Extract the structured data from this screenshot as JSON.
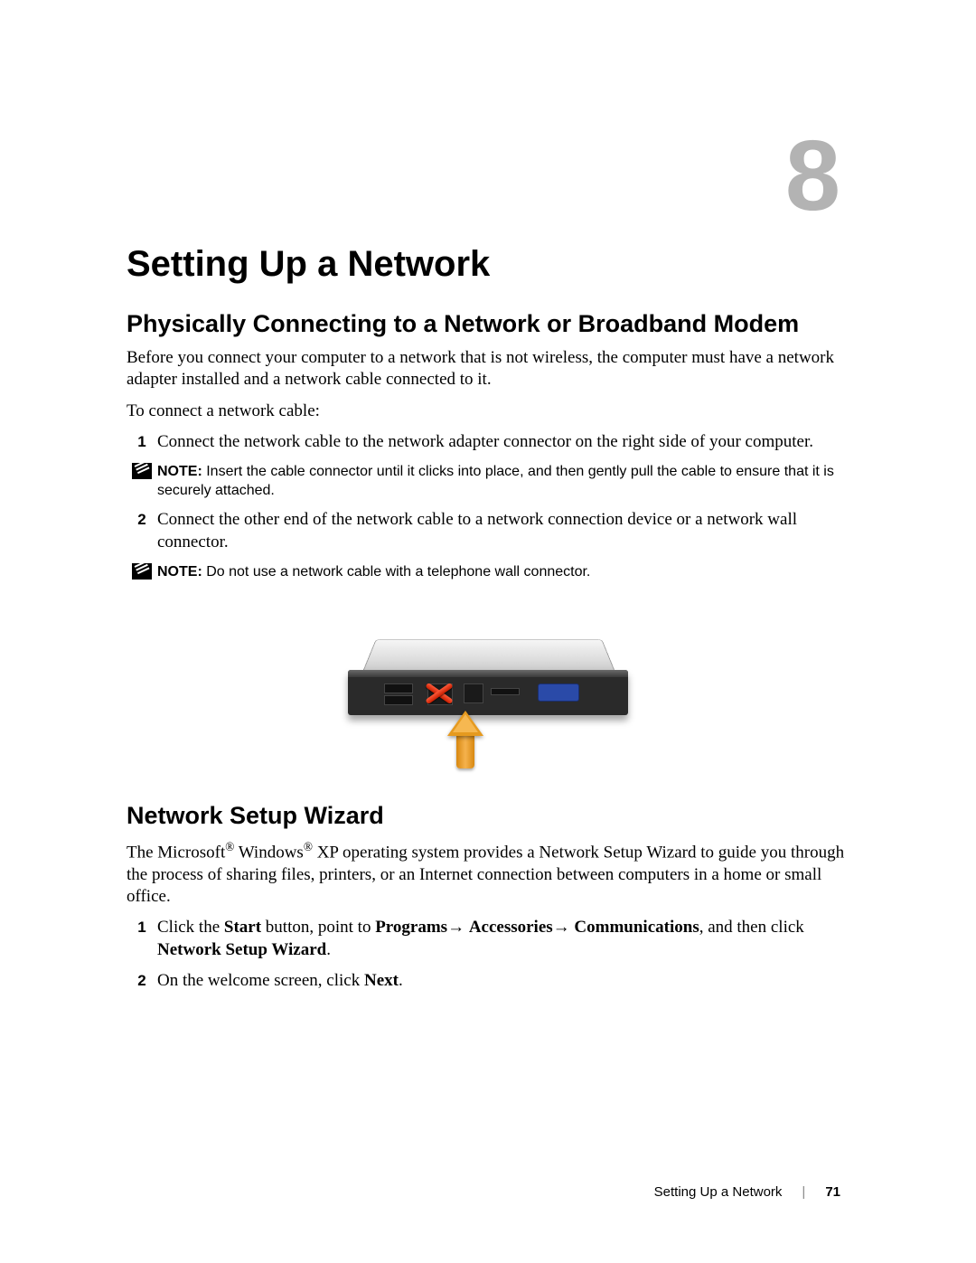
{
  "chapter_number": "8",
  "title": "Setting Up a Network",
  "section1": {
    "heading": "Physically Connecting to a Network or Broadband Modem",
    "intro": "Before you connect your computer to a network that is not wireless, the computer must have a network adapter installed and a network cable connected to it.",
    "lead": "To connect a network cable:",
    "steps": {
      "s1_num": "1",
      "s1_text": "Connect the network cable to the network adapter connector on the right side of your computer.",
      "s2_num": "2",
      "s2_text": "Connect the other end of the network cable to a network connection device or a network wall connector."
    },
    "notes": {
      "n1_label": "NOTE:",
      "n1_text": " Insert the cable connector until it clicks into place, and then gently pull the cable to ensure that it is securely attached.",
      "n2_label": "NOTE:",
      "n2_text": " Do not use a network cable with a telephone wall connector."
    }
  },
  "section2": {
    "heading": "Network Setup Wizard",
    "intro_pre": "The Microsoft",
    "intro_mid": " Windows",
    "intro_post": " XP operating system provides a Network Setup Wizard to guide you through the process of sharing files, printers, or an Internet connection between computers in a home or small office.",
    "steps": {
      "s1_num": "1",
      "s1_a": "Click the ",
      "s1_b": "Start",
      "s1_c": " button, point to ",
      "s1_d": "Programs",
      "s1_e": "→ ",
      "s1_f": "Accessories",
      "s1_g": "→ ",
      "s1_h": "Communications",
      "s1_i": ", and then click ",
      "s1_j": "Network Setup Wizard",
      "s1_k": ".",
      "s2_num": "2",
      "s2_a": "On the welcome screen, click ",
      "s2_b": "Next",
      "s2_c": "."
    }
  },
  "footer": {
    "section": "Setting Up a Network",
    "page": "71"
  },
  "style": {
    "chapter_color": "#b3b3b3",
    "accent_arrow": "#e69a1f",
    "red_x": "#c81e00",
    "vga_blue": "#2a4aa8"
  }
}
